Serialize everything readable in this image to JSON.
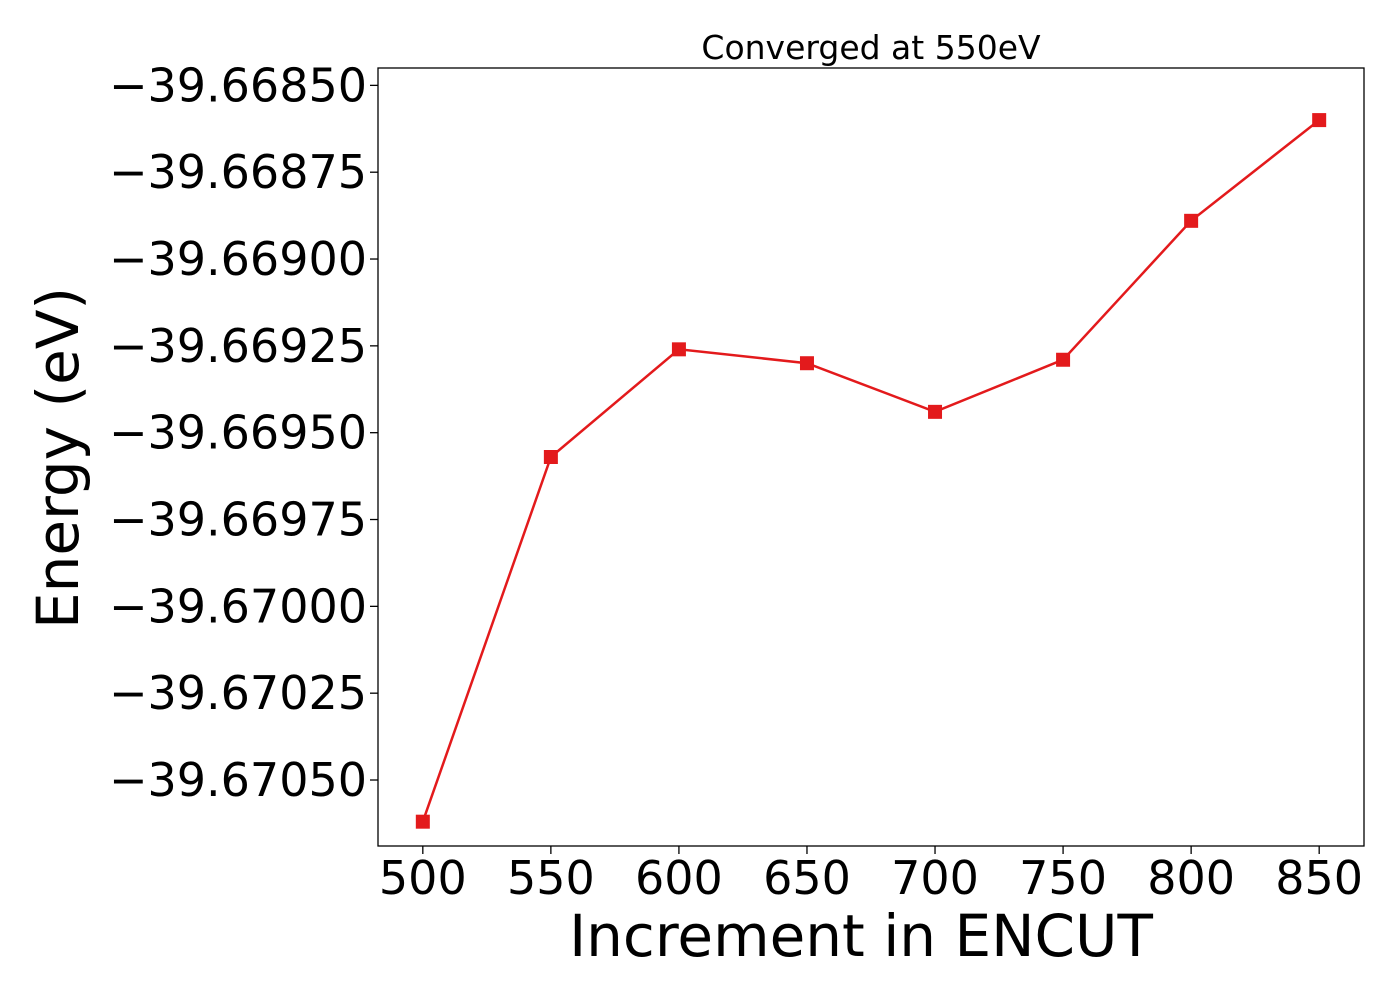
{
  "chart_data": {
    "type": "line",
    "title": "Converged at 550eV",
    "xlabel": "Increment in ENCUT",
    "ylabel": "Energy (eV)",
    "x": [
      500,
      550,
      600,
      650,
      700,
      750,
      800,
      850
    ],
    "series": [
      {
        "values": [
          -39.67062,
          -39.66957,
          -39.66926,
          -39.6693,
          -39.66944,
          -39.66929,
          -39.66889,
          -39.6686
        ],
        "color": "#e31a1c",
        "marker": "square"
      }
    ],
    "xticks": [
      500,
      550,
      600,
      650,
      700,
      750,
      800,
      850
    ],
    "xtick_labels": [
      "500",
      "550",
      "600",
      "650",
      "700",
      "750",
      "800",
      "850"
    ],
    "yticks": [
      -39.6685,
      -39.66875,
      -39.669,
      -39.66925,
      -39.6695,
      -39.66975,
      -39.67,
      -39.67025,
      -39.6705
    ],
    "ytick_labels": [
      "−39.66850",
      "−39.66875",
      "−39.66900",
      "−39.66925",
      "−39.66950",
      "−39.66975",
      "−39.67000",
      "−39.67025",
      "−39.67050"
    ],
    "xlim": [
      482.5,
      867.5
    ],
    "ylim": [
      -39.67069,
      -39.66845
    ],
    "grid": false,
    "legend": "none"
  }
}
